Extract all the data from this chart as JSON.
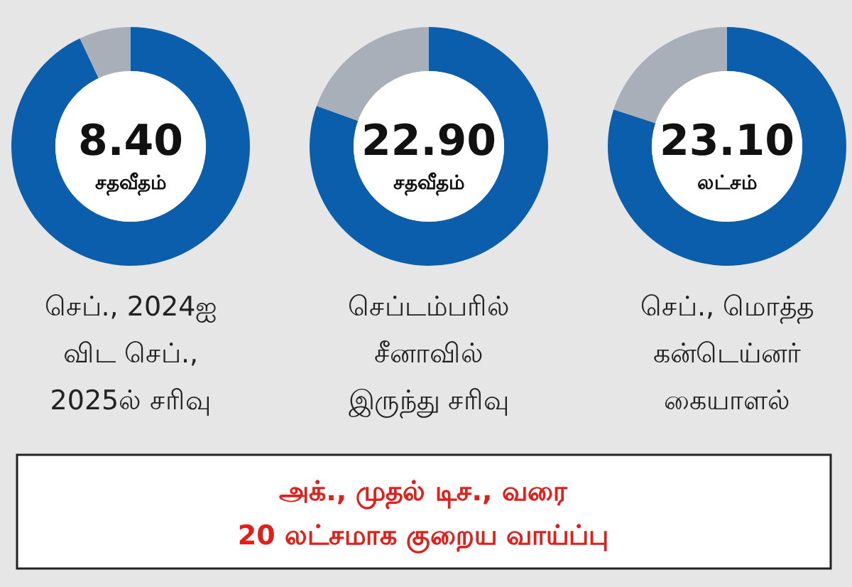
{
  "chart_data": [
    {
      "type": "donut",
      "categories": [
        null,
        null
      ],
      "values": [
        93,
        7
      ],
      "colors": [
        "#0b5eab",
        "#a8afb8"
      ],
      "annotations": [
        "8.40",
        "சதவீதம்",
        "செப்., 2024ஐ",
        "விட செப்.,",
        "2025ல் சரிவு"
      ]
    },
    {
      "type": "donut",
      "categories": [
        null,
        null
      ],
      "values": [
        80.5,
        19.5
      ],
      "colors": [
        "#0b5eab",
        "#a8afb8"
      ],
      "annotations": [
        "22.90",
        "சதவீதம்",
        "செப்டம்பரில்",
        "சீனாவில்",
        "இருந்து சரிவு"
      ]
    },
    {
      "type": "donut",
      "categories": [
        null,
        null
      ],
      "values": [
        80,
        20
      ],
      "colors": [
        "#0b5eab",
        "#a8afb8"
      ],
      "annotations": [
        "23.10",
        "லட்சம்",
        "செப்., மொத்த",
        "கன்டெய்னர்",
        "கையாளல்"
      ]
    },
    {
      "type": "other",
      "annotations": [
        "அக்., முதல் டிச., வரை",
        "20 லட்சமாக குறைய வாய்ப்பு"
      ]
    }
  ]
}
